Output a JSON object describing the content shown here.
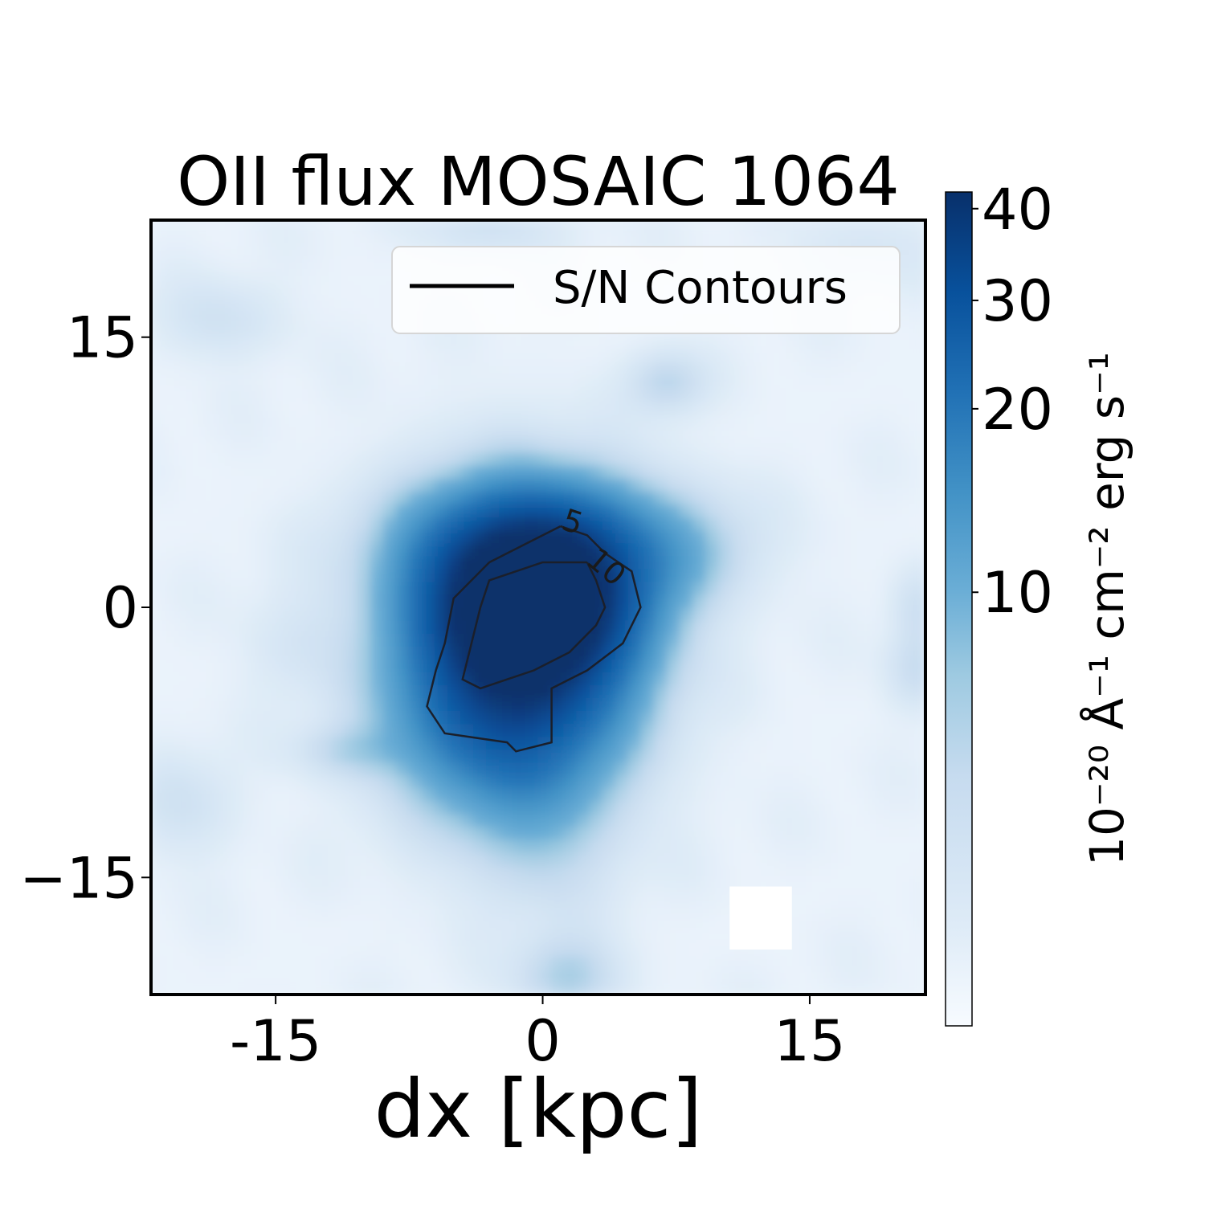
{
  "chart_data": {
    "type": "heatmap",
    "title": "OII flux MOSAIC 1064",
    "xlabel": "dx [kpc]",
    "ylabel": "",
    "xlim": [
      -22,
      21.5
    ],
    "ylim": [
      -21.5,
      21.5
    ],
    "xticks": [
      -15,
      0,
      15
    ],
    "xtick_labels": [
      "-15",
      "0",
      "15"
    ],
    "yticks": [
      15,
      0,
      -15
    ],
    "ytick_labels": [
      "15",
      "0",
      "−15"
    ],
    "colormap": "Blues",
    "colorbar": {
      "label": "10⁻²⁰ Å⁻¹ cm⁻² erg s⁻¹",
      "ticks": [
        10,
        20,
        30,
        40
      ],
      "tick_labels": [
        "10",
        "20",
        "30",
        "40"
      ],
      "range": [
        0,
        42
      ],
      "scale": "nonlinear"
    },
    "legend": {
      "position": "top-right",
      "entries": [
        {
          "label": "S/N Contours",
          "color": "#000000"
        }
      ]
    },
    "contour_levels": [
      {
        "level": "5",
        "path": [
          [
            1,
            4.5
          ],
          [
            -1,
            3.5
          ],
          [
            -3,
            2.5
          ],
          [
            -5,
            0.5
          ],
          [
            -5.5,
            -2
          ],
          [
            -6,
            -3.5
          ],
          [
            -6.5,
            -5.5
          ],
          [
            -5.5,
            -7
          ],
          [
            -2,
            -7.5
          ],
          [
            -1.5,
            -8
          ],
          [
            0.5,
            -7.5
          ],
          [
            0.5,
            -4.5
          ],
          [
            2.5,
            -3.5
          ],
          [
            4.5,
            -2
          ],
          [
            5.5,
            0
          ],
          [
            5,
            2
          ],
          [
            3.5,
            3
          ],
          [
            2.5,
            4
          ],
          [
            1,
            4.5
          ]
        ]
      },
      {
        "level": "10",
        "path": [
          [
            2.5,
            2.5
          ],
          [
            0,
            2.5
          ],
          [
            -1.5,
            2
          ],
          [
            -3,
            1.5
          ],
          [
            -3.5,
            0
          ],
          [
            -4,
            -2
          ],
          [
            -4.5,
            -4
          ],
          [
            -3.5,
            -4.5
          ],
          [
            -2,
            -4
          ],
          [
            -0.5,
            -3.5
          ],
          [
            1.5,
            -2.5
          ],
          [
            3,
            -1
          ],
          [
            3.5,
            0
          ],
          [
            3,
            1.5
          ],
          [
            2.5,
            2.5
          ]
        ]
      }
    ],
    "intensity_features": [
      {
        "x": -0.5,
        "y": 0,
        "peak": 42,
        "sx": 3.8,
        "sy": 3.2
      },
      {
        "x": -1.5,
        "y": -2.5,
        "peak": 22,
        "sx": 4.5,
        "sy": 5.5
      },
      {
        "x": 0.5,
        "y": 3.5,
        "peak": 15,
        "sx": 5.5,
        "sy": 2.5
      },
      {
        "x": -2.5,
        "y": -6.5,
        "peak": 10,
        "sx": 4.0,
        "sy": 3.0
      },
      {
        "x": 0,
        "y": -12,
        "peak": 4,
        "sx": 3.0,
        "sy": 3.5
      },
      {
        "x": 1.5,
        "y": -20.5,
        "peak": 6,
        "sx": 2.0,
        "sy": 1.5
      },
      {
        "x": 7,
        "y": 12.5,
        "peak": 5,
        "sx": 1.5,
        "sy": 1.2
      },
      {
        "x": -11,
        "y": -8,
        "peak": 4,
        "sx": 2.0,
        "sy": 1.0
      },
      {
        "x": 21,
        "y": -3.5,
        "peak": 4,
        "sx": 1.2,
        "sy": 1.5
      },
      {
        "x": 21,
        "y": 0,
        "peak": 3,
        "sx": 1.0,
        "sy": 1.5
      },
      {
        "x": -18,
        "y": 16,
        "peak": 3,
        "sx": 2.5,
        "sy": 1.5
      },
      {
        "x": -3,
        "y": 21,
        "peak": 3,
        "sx": 3.0,
        "sy": 1.0
      },
      {
        "x": -20,
        "y": -11,
        "peak": 3,
        "sx": 2.0,
        "sy": 2.0
      },
      {
        "x": 18,
        "y": 20,
        "peak": 2,
        "sx": 3.0,
        "sy": 1.5
      },
      {
        "x": 9,
        "y": 3,
        "peak": 2,
        "sx": 2.0,
        "sy": 2.0
      },
      {
        "x": -14,
        "y": -2,
        "peak": 2,
        "sx": 2.0,
        "sy": 2.0
      }
    ],
    "masked_region": {
      "x": [
        10.5,
        14
      ],
      "y": [
        -15.5,
        -19
      ]
    }
  }
}
